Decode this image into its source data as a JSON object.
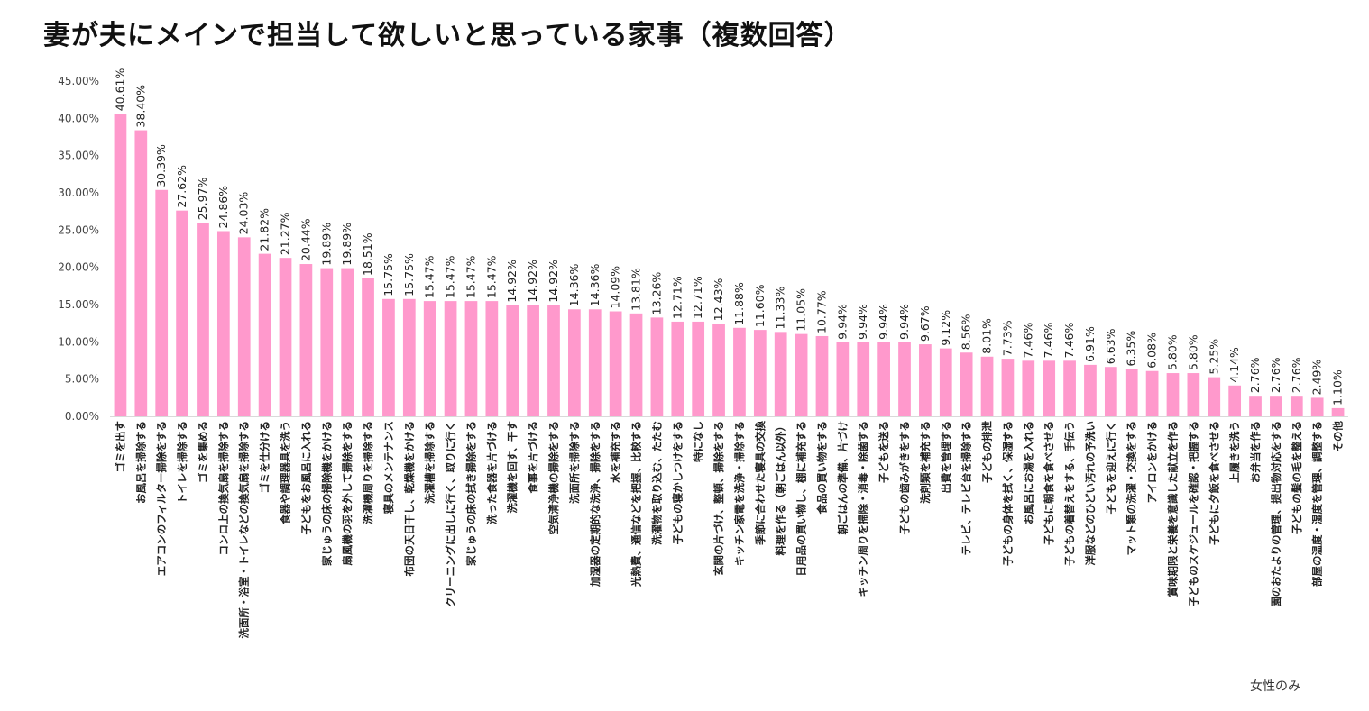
{
  "chart_data": {
    "type": "bar",
    "title": "妻が夫にメインで担当して欲しいと思っている家事（複数回答）",
    "note": "女性のみ",
    "ylim": [
      0,
      45
    ],
    "yticks": [
      "0.00%",
      "5.00%",
      "10.00%",
      "15.00%",
      "20.00%",
      "25.00%",
      "30.00%",
      "35.00%",
      "40.00%",
      "45.00%"
    ],
    "bar_color": "#FF99CC",
    "grid": false,
    "legend": "none",
    "categories": [
      "ゴミを出す",
      "お風呂を掃除する",
      "エアコンのフィルター掃除をする",
      "トイレを掃除する",
      "ゴミを集める",
      "コンロ上の換気扇を掃除する",
      "洗面所・浴室・トイレなどの換気扇を掃除する",
      "ゴミを仕分ける",
      "食器や調理器具を洗う",
      "子どもをお風呂に入れる",
      "家じゅうの床の掃除機をかける",
      "扇風機の羽を外して掃除をする",
      "洗濯機周りを掃除する",
      "寝具のメンテナンス",
      "布団の天日干し、乾燥機をかける",
      "洗濯槽を掃除する",
      "クリーニングに出しに行く、取りに行く",
      "家じゅうの床の拭き掃除をする",
      "洗った食器を片づける",
      "洗濯機を回す、干す",
      "食事を片づける",
      "空気清浄機の掃除をする",
      "洗面所を掃除する",
      "加湿器の定期的な洗浄、掃除をする",
      "水を補充する",
      "光熱費、通信などを把握、比較する",
      "洗濯物を取り込む、たたむ",
      "子どもの寝かしつけをする",
      "特になし",
      "玄関の片づけ、整頓、掃除をする",
      "キッチン家電を洗浄・掃除する",
      "季節に合わせた寝具の交換",
      "料理を作る（朝ごはん以外）",
      "日用品の買い物し、棚に補充する",
      "食品の買い物をする",
      "朝ごはんの準備、片づけ",
      "キッチン周りを掃除・消毒・除菌する",
      "子どもを送る",
      "子どもの歯みがきをする",
      "洗剤類を補充する",
      "出費を管理する",
      "テレビ、テレビ台を掃除する",
      "子どもの排泄",
      "子どもの身体を拭く、保湿する",
      "お風呂にお湯を入れる",
      "子どもに朝食を食べさせる",
      "子どもの着替えをする、手伝う",
      "洋服などのひどい汚れの予洗い",
      "子どもを迎えに行く",
      "マット類の洗濯・交換をする",
      "アイロンをかける",
      "賞味期限と栄養を意識した献立を作る",
      "子どものスケジュールを確認・把握する",
      "子どもに夕飯を食べさせる",
      "上履きを洗う",
      "お弁当を作る",
      "園のおたよりの管理、提出物対応をする",
      "子どもの髪の毛を整える",
      "部屋の温度・湿度を管理、調整する",
      "その他"
    ],
    "values": [
      40.61,
      38.4,
      30.39,
      27.62,
      25.97,
      24.86,
      24.03,
      21.82,
      21.27,
      20.44,
      19.89,
      19.89,
      18.51,
      15.75,
      15.75,
      15.47,
      15.47,
      15.47,
      15.47,
      14.92,
      14.92,
      14.92,
      14.36,
      14.36,
      14.09,
      13.81,
      13.26,
      12.71,
      12.71,
      12.43,
      11.88,
      11.6,
      11.33,
      11.05,
      10.77,
      9.94,
      9.94,
      9.94,
      9.94,
      9.67,
      9.12,
      8.56,
      8.01,
      7.73,
      7.46,
      7.46,
      7.46,
      6.91,
      6.63,
      6.35,
      6.08,
      5.8,
      5.8,
      5.25,
      4.14,
      2.76,
      2.76,
      2.76,
      2.49,
      1.1
    ],
    "value_labels": [
      "40.61%",
      "38.40%",
      "30.39%",
      "27.62%",
      "25.97%",
      "24.86%",
      "24.03%",
      "21.82%",
      "21.27%",
      "20.44%",
      "19.89%",
      "19.89%",
      "18.51%",
      "15.75%",
      "15.75%",
      "15.47%",
      "15.47%",
      "15.47%",
      "15.47%",
      "14.92%",
      "14.92%",
      "14.92%",
      "14.36%",
      "14.36%",
      "14.09%",
      "13.81%",
      "13.26%",
      "12.71%",
      "12.71%",
      "12.43%",
      "11.88%",
      "11.60%",
      "11.33%",
      "11.05%",
      "10.77%",
      "9.94%",
      "9.94%",
      "9.94%",
      "9.94%",
      "9.67%",
      "9.12%",
      "8.56%",
      "8.01%",
      "7.73%",
      "7.46%",
      "7.46%",
      "7.46%",
      "6.91%",
      "6.63%",
      "6.35%",
      "6.08%",
      "5.80%",
      "5.80%",
      "5.25%",
      "4.14%",
      "2.76%",
      "2.76%",
      "2.76%",
      "2.49%",
      "1.10%"
    ]
  }
}
